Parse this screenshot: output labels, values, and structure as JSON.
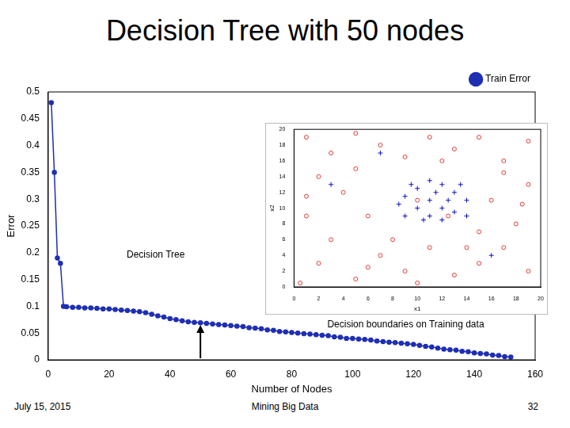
{
  "title": "Decision Tree with 50 nodes",
  "footer": {
    "left": "July 15, 2015",
    "center": "Mining Big Data",
    "right": "32"
  },
  "chart_data": [
    {
      "type": "line",
      "x_label": "Number of Nodes",
      "y_label": "Error",
      "legend": "top-right",
      "grid": false,
      "annotations": [
        {
          "text": "Decision Tree"
        }
      ],
      "arrow": {
        "x": 50,
        "y_from": 0.003,
        "y_to": 0.065
      },
      "xlim": [
        0,
        160
      ],
      "xticks": [
        0,
        20,
        40,
        60,
        80,
        100,
        120,
        140,
        160
      ],
      "ylim": [
        0,
        0.5
      ],
      "yticks": [
        0,
        0.05,
        0.1,
        0.15,
        0.2,
        0.25,
        0.3,
        0.35,
        0.4,
        0.45,
        0.5
      ],
      "series": [
        {
          "name": "Train Error",
          "color": "#1f2fb4",
          "marker": "circle",
          "x": [
            1,
            2,
            3,
            4,
            5,
            6,
            8,
            10,
            12,
            14,
            16,
            18,
            20,
            22,
            24,
            26,
            28,
            30,
            32,
            34,
            36,
            38,
            40,
            42,
            44,
            46,
            48,
            50,
            52,
            54,
            56,
            58,
            60,
            62,
            64,
            66,
            68,
            70,
            72,
            74,
            76,
            78,
            80,
            82,
            84,
            86,
            88,
            90,
            92,
            94,
            96,
            98,
            100,
            102,
            104,
            106,
            108,
            110,
            112,
            114,
            116,
            118,
            120,
            122,
            124,
            126,
            128,
            130,
            132,
            134,
            136,
            138,
            140,
            142,
            144,
            146,
            148,
            150,
            152
          ],
          "values": [
            0.48,
            0.35,
            0.19,
            0.18,
            0.1,
            0.099,
            0.098,
            0.098,
            0.097,
            0.097,
            0.096,
            0.095,
            0.095,
            0.094,
            0.093,
            0.092,
            0.091,
            0.09,
            0.088,
            0.085,
            0.082,
            0.08,
            0.077,
            0.075,
            0.073,
            0.071,
            0.07,
            0.069,
            0.068,
            0.067,
            0.066,
            0.065,
            0.064,
            0.063,
            0.062,
            0.06,
            0.059,
            0.058,
            0.056,
            0.055,
            0.053,
            0.052,
            0.051,
            0.05,
            0.049,
            0.048,
            0.047,
            0.046,
            0.045,
            0.043,
            0.042,
            0.04,
            0.04,
            0.039,
            0.038,
            0.037,
            0.035,
            0.034,
            0.033,
            0.032,
            0.031,
            0.03,
            0.029,
            0.027,
            0.025,
            0.024,
            0.022,
            0.02,
            0.019,
            0.018,
            0.016,
            0.015,
            0.013,
            0.012,
            0.011,
            0.009,
            0.008,
            0.006,
            0.005
          ]
        }
      ]
    },
    {
      "type": "scatter",
      "caption": "Decision boundaries on Training data",
      "x_label": "x1",
      "y_label": "x2",
      "grid": false,
      "xlim": [
        0,
        20
      ],
      "xticks": [
        0,
        2,
        4,
        6,
        8,
        10,
        12,
        14,
        16,
        18,
        20
      ],
      "ylim": [
        0,
        20
      ],
      "yticks": [
        0,
        2,
        4,
        6,
        8,
        10,
        12,
        14,
        16,
        18,
        20
      ],
      "series": [
        {
          "color": "#e03a3a",
          "marker": "circle",
          "values": [
            [
              1,
              19
            ],
            [
              3,
              17
            ],
            [
              5,
              19.5
            ],
            [
              7,
              18
            ],
            [
              9,
              16.5
            ],
            [
              11,
              19
            ],
            [
              13,
              17.5
            ],
            [
              15,
              19
            ],
            [
              17,
              16
            ],
            [
              19,
              18.5
            ],
            [
              2,
              14
            ],
            [
              4,
              12
            ],
            [
              1,
              9
            ],
            [
              3,
              6
            ],
            [
              2,
              3
            ],
            [
              5,
              1
            ],
            [
              7,
              4
            ],
            [
              9,
              2
            ],
            [
              11,
              5
            ],
            [
              13,
              1.5
            ],
            [
              15,
              3
            ],
            [
              17,
              5
            ],
            [
              19,
              2
            ],
            [
              18,
              8
            ],
            [
              16,
              11
            ],
            [
              19,
              13
            ],
            [
              17,
              14.5
            ],
            [
              6,
              9
            ],
            [
              5,
              15
            ],
            [
              15,
              7
            ],
            [
              8,
              6
            ],
            [
              12,
              16
            ],
            [
              14,
              5
            ],
            [
              0.5,
              0.5
            ],
            [
              6,
              2.5
            ],
            [
              10,
              0.5
            ],
            [
              18.5,
              10.5
            ],
            [
              1,
              11.5
            ],
            [
              10,
              11
            ],
            [
              12.5,
              9
            ]
          ]
        },
        {
          "color": "#1010c0",
          "marker": "plus",
          "values": [
            [
              9,
              9
            ],
            [
              10,
              10
            ],
            [
              11,
              11
            ],
            [
              12,
              10
            ],
            [
              13,
              12
            ],
            [
              10,
              12.5
            ],
            [
              11,
              9
            ],
            [
              12,
              13
            ],
            [
              9,
              11.5
            ],
            [
              13,
              9.5
            ],
            [
              14,
              11
            ],
            [
              10.5,
              8.5
            ],
            [
              11.5,
              12
            ],
            [
              12.5,
              11
            ],
            [
              9.5,
              13
            ],
            [
              13.5,
              13
            ],
            [
              8.5,
              10.5
            ],
            [
              14,
              9
            ],
            [
              11,
              13.5
            ],
            [
              12,
              8.5
            ],
            [
              3,
              13
            ],
            [
              16,
              4
            ],
            [
              7,
              17
            ]
          ]
        }
      ]
    }
  ]
}
